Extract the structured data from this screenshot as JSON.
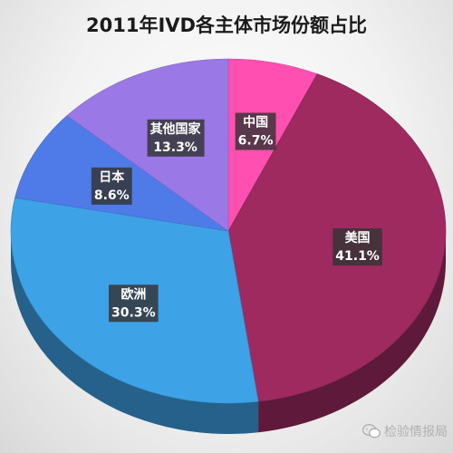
{
  "chart_data": {
    "type": "pie",
    "title": "2011年IVD各主体市场份额占比",
    "slices": [
      {
        "label": "中国",
        "percent_text": "6.7%",
        "value": 6.7,
        "color": "#FF4FB0"
      },
      {
        "label": "美国",
        "percent_text": "41.1%",
        "value": 41.1,
        "color": "#9E2A60"
      },
      {
        "label": "欧洲",
        "percent_text": "30.3%",
        "value": 30.3,
        "color": "#3DA2E6"
      },
      {
        "label": "日本",
        "percent_text": "8.6%",
        "value": 8.6,
        "color": "#4F7BE8"
      },
      {
        "label": "其他国家",
        "percent_text": "13.3%",
        "value": 13.3,
        "color": "#9A78E6"
      }
    ],
    "start_angle_deg": 0,
    "direction": "clockwise",
    "style": "3d-tilted"
  },
  "watermark": {
    "text": "检验情报局",
    "icon": "wechat-icon"
  }
}
